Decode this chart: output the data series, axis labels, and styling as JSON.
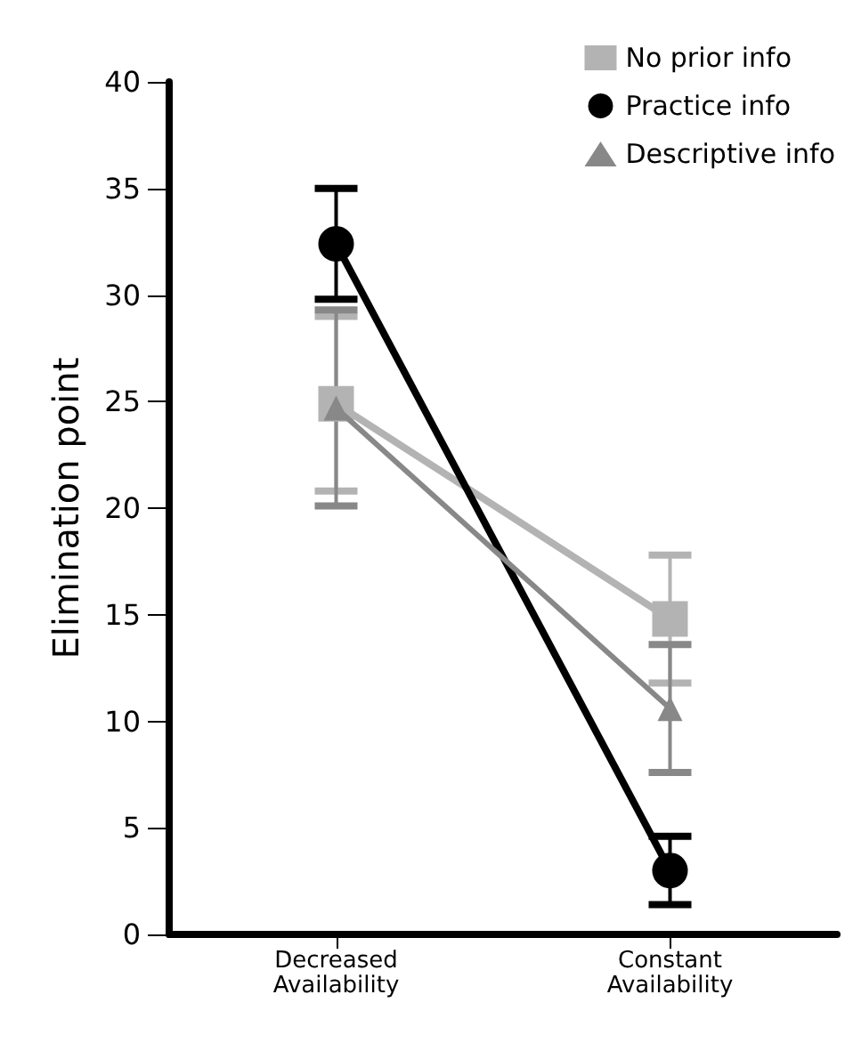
{
  "chart_data": {
    "type": "line",
    "ylabel": "Elimination point",
    "categories": [
      "Decreased\nAvailability",
      "Constant\nAvailability"
    ],
    "series": [
      {
        "name": "No prior info",
        "color": "#b3b3b3",
        "marker": "square",
        "values": [
          24.9,
          14.8
        ],
        "errors": [
          4.1,
          3.0
        ]
      },
      {
        "name": "Practice info",
        "color": "#000000",
        "marker": "circle",
        "values": [
          32.4,
          3.0
        ],
        "errors": [
          2.6,
          1.6
        ]
      },
      {
        "name": "Descriptive info",
        "color": "#888888",
        "marker": "triangle",
        "values": [
          24.7,
          10.6
        ],
        "errors": [
          4.6,
          3.0
        ]
      }
    ],
    "ylim": [
      0,
      40
    ],
    "yticks": [
      0,
      5,
      10,
      15,
      20,
      25,
      30,
      35,
      40
    ],
    "grid": false,
    "legend": "top right"
  }
}
